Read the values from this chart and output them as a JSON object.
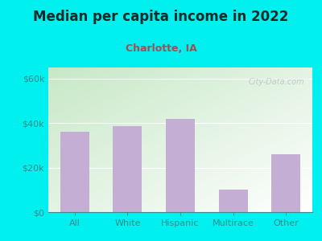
{
  "title": "Median per capita income in 2022",
  "subtitle": "Charlotte, IA",
  "categories": [
    "All",
    "White",
    "Hispanic",
    "Multirace",
    "Other"
  ],
  "values": [
    36000,
    38500,
    42000,
    10000,
    26000
  ],
  "bar_color": "#c4aed4",
  "title_color": "#1a2a2a",
  "subtitle_color": "#a05050",
  "axis_text_color": "#3a8a8a",
  "background_outer": "#00f0f0",
  "background_inner_topleft": "#c8e8c8",
  "background_inner_bottomright": "#f8fff8",
  "ylabel_ticks": [
    0,
    20000,
    40000,
    60000
  ],
  "ylabel_labels": [
    "$0",
    "$20k",
    "$40k",
    "$60k"
  ],
  "ylim": [
    0,
    65000
  ],
  "watermark": "City-Data.com",
  "title_fontsize": 12,
  "subtitle_fontsize": 9,
  "tick_fontsize": 8
}
